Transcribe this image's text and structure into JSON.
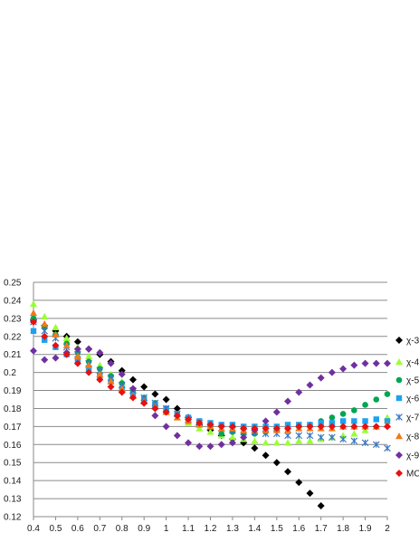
{
  "chart_data": {
    "type": "scatter",
    "title": "",
    "xlabel": "",
    "ylabel": "",
    "xlim": [
      0.4,
      2.0
    ],
    "ylim": [
      0.12,
      0.25
    ],
    "grid": "horizontal",
    "legend_placement": "right",
    "x_ticks": [
      "0.4",
      "0.5",
      "0.6",
      "0.7",
      "0.8",
      "0.9",
      "1",
      "1.1",
      "1.2",
      "1.3",
      "1.4",
      "1.5",
      "1.6",
      "1.7",
      "1.8",
      "1.9",
      "2"
    ],
    "y_ticks": [
      "0.25",
      "0.24",
      "0.23",
      "0.22",
      "0.21",
      "0.2",
      "0.19",
      "0.18",
      "0.17",
      "0.16",
      "0.15",
      "0.14",
      "0.13",
      "0.12"
    ],
    "x": [
      0.4,
      0.45,
      0.5,
      0.55,
      0.6,
      0.65,
      0.7,
      0.75,
      0.8,
      0.85,
      0.9,
      0.95,
      1.0,
      1.05,
      1.1,
      1.15,
      1.2,
      1.25,
      1.3,
      1.35,
      1.4,
      1.45,
      1.5,
      1.55,
      1.6,
      1.65,
      1.7,
      1.75,
      1.8,
      1.85,
      1.9,
      1.95,
      2.0
    ],
    "series": [
      {
        "name": "χ-3",
        "marker": "diamond",
        "color": "#000000",
        "values": [
          0.229,
          0.226,
          0.223,
          0.22,
          0.217,
          0.213,
          0.21,
          0.206,
          0.201,
          0.196,
          0.192,
          0.188,
          0.185,
          0.18,
          0.175,
          0.171,
          0.168,
          0.165,
          0.163,
          0.161,
          0.158,
          0.154,
          0.15,
          0.145,
          0.139,
          0.133,
          0.126,
          null,
          null,
          null,
          null,
          null,
          null
        ]
      },
      {
        "name": "χ-4",
        "marker": "triangle",
        "color": "#99ff33",
        "values": [
          0.238,
          0.231,
          0.225,
          0.219,
          0.214,
          0.209,
          0.204,
          0.199,
          0.195,
          0.19,
          0.186,
          0.182,
          0.178,
          0.175,
          0.172,
          0.169,
          0.167,
          0.165,
          0.164,
          0.163,
          0.162,
          0.161,
          0.161,
          0.161,
          0.162,
          0.162,
          0.163,
          0.164,
          0.165,
          0.166,
          0.168,
          0.17,
          0.175
        ]
      },
      {
        "name": "χ-5",
        "marker": "circle",
        "color": "#00a650",
        "values": [
          0.23,
          0.225,
          0.221,
          0.216,
          0.211,
          0.206,
          0.202,
          0.198,
          0.194,
          0.19,
          0.186,
          0.183,
          0.18,
          0.177,
          0.174,
          0.172,
          0.17,
          0.166,
          0.167,
          0.166,
          0.166,
          0.167,
          0.168,
          0.169,
          0.17,
          0.171,
          0.173,
          0.175,
          0.177,
          0.179,
          0.182,
          0.185,
          0.188
        ]
      },
      {
        "name": "χ-6",
        "marker": "square",
        "color": "#1da1f2",
        "values": [
          0.223,
          0.218,
          0.214,
          0.21,
          0.206,
          0.202,
          0.198,
          0.195,
          0.191,
          0.188,
          0.185,
          0.182,
          0.18,
          0.177,
          0.175,
          0.173,
          0.172,
          0.171,
          0.171,
          0.17,
          0.17,
          0.17,
          0.17,
          0.171,
          0.171,
          0.171,
          0.172,
          0.172,
          0.173,
          0.173,
          0.173,
          0.174,
          0.173
        ]
      },
      {
        "name": "χ-7",
        "marker": "asterisk",
        "color": "#3a78c4",
        "values": [
          0.228,
          0.223,
          0.219,
          0.214,
          0.21,
          0.205,
          0.201,
          0.197,
          0.193,
          0.19,
          0.186,
          0.183,
          0.18,
          0.177,
          0.174,
          0.172,
          0.17,
          0.169,
          0.168,
          0.167,
          0.167,
          0.166,
          0.166,
          0.165,
          0.165,
          0.165,
          0.164,
          0.164,
          0.163,
          0.162,
          0.161,
          0.16,
          0.158
        ]
      },
      {
        "name": "χ-8",
        "marker": "triangle",
        "color": "#f07a17",
        "values": [
          0.233,
          0.227,
          0.221,
          0.215,
          0.209,
          0.204,
          0.199,
          0.195,
          0.191,
          0.187,
          0.184,
          0.181,
          0.178,
          0.175,
          0.173,
          0.171,
          0.17,
          0.169,
          0.169,
          0.168,
          0.168,
          0.168,
          0.168,
          0.168,
          0.169,
          0.169,
          0.169,
          0.169,
          0.17,
          0.17,
          0.17,
          0.17,
          0.171
        ]
      },
      {
        "name": "χ-9",
        "marker": "diamond",
        "color": "#7030a0",
        "values": [
          0.212,
          0.207,
          0.208,
          0.211,
          0.213,
          0.213,
          0.211,
          0.205,
          0.199,
          0.191,
          0.183,
          0.176,
          0.17,
          0.165,
          0.161,
          0.159,
          0.159,
          0.16,
          0.161,
          0.164,
          0.168,
          0.173,
          0.178,
          0.184,
          0.189,
          0.193,
          0.197,
          0.2,
          0.202,
          0.204,
          0.205,
          0.205,
          0.205
        ]
      },
      {
        "name": "MC",
        "marker": "diamond",
        "color": "#e81010",
        "values": [
          0.228,
          0.22,
          0.215,
          0.21,
          0.205,
          0.2,
          0.196,
          0.192,
          0.189,
          0.186,
          0.183,
          0.18,
          0.178,
          0.176,
          0.174,
          0.172,
          0.171,
          0.17,
          0.17,
          0.169,
          0.169,
          0.169,
          0.169,
          0.169,
          0.17,
          0.17,
          0.17,
          0.17,
          0.17,
          0.17,
          0.17,
          0.17,
          0.17
        ]
      }
    ]
  }
}
